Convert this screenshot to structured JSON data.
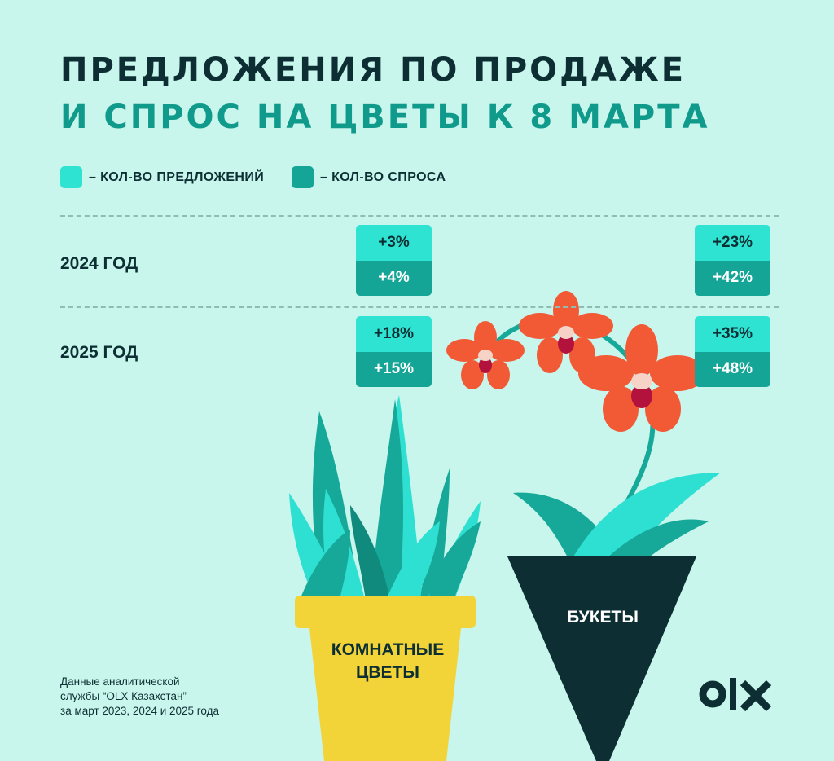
{
  "title": {
    "line1": "ПРЕДЛОЖЕНИЯ ПО ПРОДАЖЕ",
    "line2": "И СПРОС НА ЦВЕТЫ К 8 МАРТА"
  },
  "legend": {
    "offers": {
      "label": "– КОЛ-ВО ПРЕДЛОЖЕНИЙ",
      "color": "#2fe3d3"
    },
    "demand": {
      "label": "– КОЛ-ВО СПРОСА",
      "color": "#14a596"
    }
  },
  "chart_data": {
    "type": "table",
    "title": "ПРЕДЛОЖЕНИЯ ПО ПРОДАЖЕ И СПРОС НА ЦВЕТЫ К 8 МАРТА",
    "categories": [
      "КОМНАТНЫЕ ЦВЕТЫ",
      "БУКЕТЫ"
    ],
    "rows": [
      "2024 ГОД",
      "2025 ГОД"
    ],
    "series": [
      {
        "name": "КОЛ-ВО ПРЕДЛОЖЕНИЙ",
        "color": "#2fe3d3",
        "values": {
          "2024 ГОД": [
            "+3%",
            "+23%"
          ],
          "2025 ГОД": [
            "+18%",
            "+35%"
          ]
        }
      },
      {
        "name": "КОЛ-ВО СПРОСА",
        "color": "#14a596",
        "values": {
          "2024 ГОД": [
            "+4%",
            "+42%"
          ],
          "2025 ГОД": [
            "+15%",
            "+48%"
          ]
        }
      }
    ]
  },
  "rows": [
    {
      "year": "2024 ГОД",
      "indoor": {
        "offers": "+3%",
        "demand": "+4%"
      },
      "bouquets": {
        "offers": "+23%",
        "demand": "+42%"
      }
    },
    {
      "year": "2025 ГОД",
      "indoor": {
        "offers": "+18%",
        "demand": "+15%"
      },
      "bouquets": {
        "offers": "+35%",
        "demand": "+48%"
      }
    }
  ],
  "categories": {
    "indoor": {
      "line1": "КОМНАТНЫЕ",
      "line2": "ЦВЕТЫ"
    },
    "bouquets": "БУКЕТЫ"
  },
  "source_note": {
    "line1": "Данные аналитической",
    "line2": "службы “OLX Казахстан”",
    "line3": "за март 2023, 2024 и 2025 года"
  },
  "brand": {
    "name": "OLX",
    "icon": "olx-logo"
  },
  "colors": {
    "background": "#c8f5ec",
    "dark": "#0d2f33",
    "teal_title": "#0f9a8c",
    "offers": "#2fe3d3",
    "demand": "#14a596",
    "pot": "#f2d338",
    "petal": "#f25a36"
  }
}
